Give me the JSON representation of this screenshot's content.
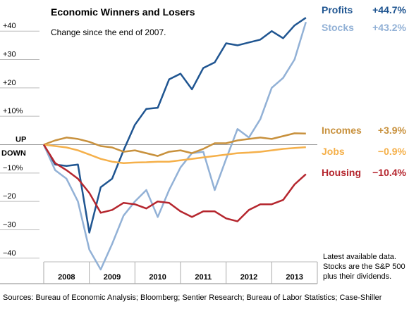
{
  "chart_data": {
    "type": "line",
    "title": "Economic Winners and Losers",
    "subtitle": "Change since the end of 2007.",
    "note": [
      "Latest available data.",
      "Stocks are the S&P 500",
      "plus their dividends."
    ],
    "source": "Sources: Bureau of Economic Analysis; Bloomberg; Sentier Research; Bureau of Labor Statistics; Case-Shiller",
    "down_label": "DOWN",
    "x": [
      2008,
      2008.25,
      2008.5,
      2008.75,
      2009,
      2009.25,
      2009.5,
      2009.75,
      2010,
      2010.25,
      2010.5,
      2010.75,
      2011,
      2011.25,
      2011.5,
      2011.75,
      2012,
      2012.25,
      2012.5,
      2012.75,
      2013,
      2013.25,
      2013.5,
      2013.75
    ],
    "xlim": [
      2008,
      2014
    ],
    "xticks": [
      2008,
      2009,
      2010,
      2011,
      2012,
      2013
    ],
    "ylim": [
      -46,
      46
    ],
    "yticks": [
      {
        "value": -40,
        "label": "−40"
      },
      {
        "value": -30,
        "label": "−30"
      },
      {
        "value": -20,
        "label": "−20"
      },
      {
        "value": -10,
        "label": "−10%"
      },
      {
        "value": 0,
        "label": "UP"
      },
      {
        "value": 10,
        "label": "+10%"
      },
      {
        "value": 20,
        "label": "+20"
      },
      {
        "value": 30,
        "label": "+30"
      },
      {
        "value": 40,
        "label": "+40"
      }
    ],
    "series": [
      {
        "name": "Profits",
        "color": "#1f5591",
        "values": [
          0,
          -7,
          -7.5,
          -7,
          -31,
          -15,
          -12,
          -2,
          7,
          12.6,
          13,
          23,
          25,
          19.5,
          27,
          29,
          35.7,
          35,
          36,
          37,
          40,
          37.5,
          42,
          44.7
        ],
        "value_labels": [
          null,
          null,
          null,
          null,
          null,
          null,
          null,
          null,
          null,
          null,
          null,
          null,
          null,
          null,
          null,
          null,
          null,
          null,
          null,
          null,
          null,
          null,
          null,
          "+44.7%"
        ]
      },
      {
        "name": "Stocks",
        "color": "#92b1d6",
        "values": [
          0,
          -9,
          -12,
          -20,
          -37,
          -44,
          -35,
          -25,
          -20,
          -16,
          -25.5,
          -16,
          -8,
          -3,
          -2.5,
          -16,
          -5,
          5.5,
          2.5,
          9,
          20,
          23.5,
          30,
          43.2
        ],
        "value_labels": [
          null,
          null,
          null,
          null,
          null,
          null,
          null,
          null,
          null,
          null,
          null,
          null,
          null,
          null,
          null,
          null,
          null,
          null,
          null,
          null,
          null,
          null,
          null,
          "+43.2%"
        ]
      },
      {
        "name": "Incomes",
        "color": "#c8913d",
        "values": [
          0,
          1.5,
          2.5,
          2,
          1,
          -0.5,
          -1,
          -2.5,
          -2,
          -3,
          -4,
          -2.5,
          -2,
          -3,
          -1.5,
          0.5,
          0.5,
          1.5,
          2,
          2.5,
          2,
          3,
          4,
          3.9
        ],
        "value_labels": [
          null,
          null,
          null,
          null,
          null,
          null,
          null,
          null,
          null,
          null,
          null,
          null,
          null,
          null,
          null,
          null,
          null,
          null,
          null,
          null,
          null,
          null,
          null,
          "+3.9%"
        ]
      },
      {
        "name": "Jobs",
        "color": "#f5b04a",
        "values": [
          0,
          -0.5,
          -1,
          -2,
          -3.5,
          -5,
          -6,
          -6.5,
          -6.3,
          -6.2,
          -6,
          -6,
          -5.5,
          -5,
          -4.5,
          -4,
          -3.5,
          -3,
          -2.8,
          -2.5,
          -2,
          -1.5,
          -1.2,
          -0.9
        ],
        "value_labels": [
          null,
          null,
          null,
          null,
          null,
          null,
          null,
          null,
          null,
          null,
          null,
          null,
          null,
          null,
          null,
          null,
          null,
          null,
          null,
          null,
          null,
          null,
          null,
          "−0.9%"
        ]
      },
      {
        "name": "Housing",
        "color": "#b5262e",
        "values": [
          0,
          -6.5,
          -9,
          -12,
          -17,
          -24,
          -23,
          -20.5,
          -21,
          -22.5,
          -20,
          -20.5,
          -23.5,
          -25.5,
          -23.5,
          -23.5,
          -26,
          -27,
          -23,
          -21,
          -21,
          -19.5,
          -14,
          -10.4
        ],
        "value_labels": [
          null,
          null,
          null,
          null,
          null,
          null,
          null,
          null,
          null,
          null,
          null,
          null,
          null,
          null,
          null,
          null,
          null,
          null,
          null,
          null,
          null,
          null,
          null,
          "−10.4%"
        ]
      }
    ]
  }
}
